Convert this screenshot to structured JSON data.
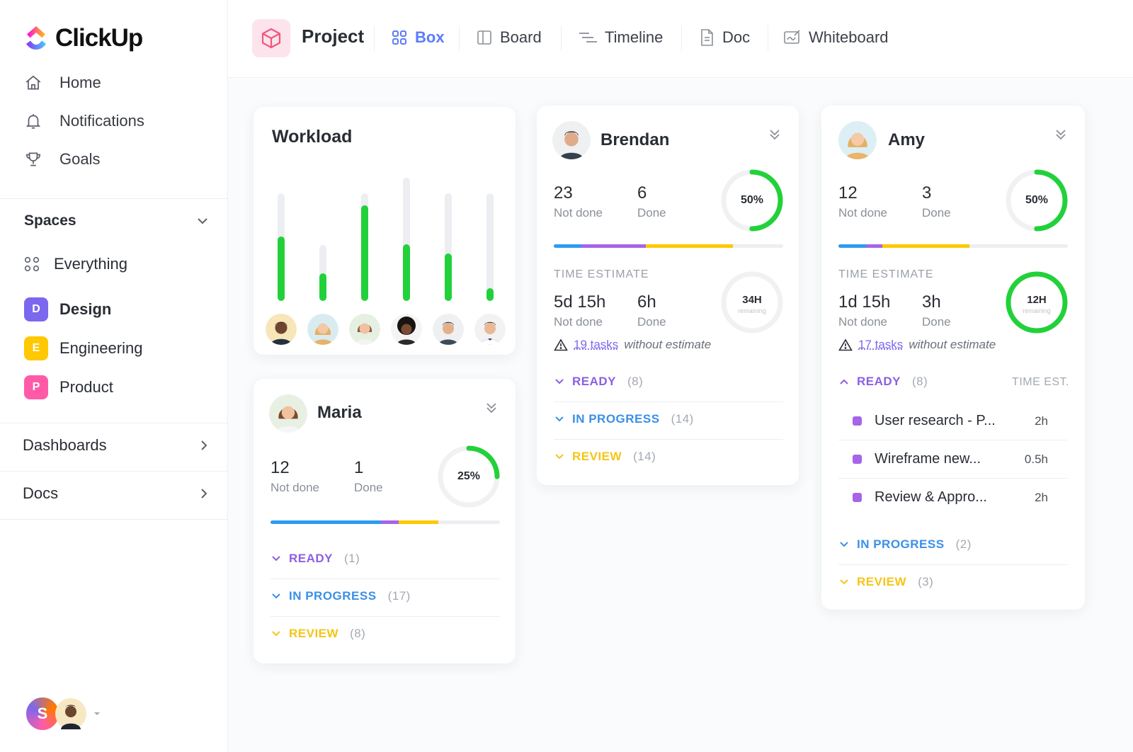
{
  "app": {
    "name": "ClickUp"
  },
  "sidebar": {
    "nav": [
      {
        "label": "Home",
        "icon": "home-icon"
      },
      {
        "label": "Notifications",
        "icon": "bell-icon"
      },
      {
        "label": "Goals",
        "icon": "trophy-icon"
      }
    ],
    "spaces_label": "Spaces",
    "spaces": [
      {
        "label": "Everything",
        "badge": "",
        "color": ""
      },
      {
        "label": "Design",
        "badge": "D",
        "color": "#7b68ee"
      },
      {
        "label": "Engineering",
        "badge": "E",
        "color": "#ffc800"
      },
      {
        "label": "Product",
        "badge": "P",
        "color": "#ff5aa8"
      }
    ],
    "dashboards_label": "Dashboards",
    "docs_label": "Docs",
    "user_initial": "S"
  },
  "topbar": {
    "project_title": "Project",
    "tabs": [
      {
        "label": "Box",
        "icon": "grid-icon",
        "active": true
      },
      {
        "label": "Board",
        "icon": "board-icon",
        "active": false
      },
      {
        "label": "Timeline",
        "icon": "timeline-icon",
        "active": false
      },
      {
        "label": "Doc",
        "icon": "doc-icon",
        "active": false
      },
      {
        "label": "Whiteboard",
        "icon": "whiteboard-icon",
        "active": false
      }
    ]
  },
  "workload": {
    "title": "Workload",
    "bars": [
      {
        "fill_fraction": 0.6
      },
      {
        "fill_fraction": 0.5
      },
      {
        "fill_fraction": 0.89
      },
      {
        "fill_fraction": 0.46
      },
      {
        "fill_fraction": 0.44
      },
      {
        "fill_fraction": 0.12
      }
    ]
  },
  "colors": {
    "green": "#22d13a",
    "blue": "#2e9bf0",
    "purple": "#a665e8",
    "yellow": "#ffc800",
    "ready": "#8c5fe0",
    "in_progress": "#3b8fe8",
    "review": "#f5c518"
  },
  "people": {
    "brendan": {
      "name": "Brendan",
      "not_done": "23",
      "not_done_label": "Not done",
      "done": "6",
      "done_label": "Done",
      "percent": "50%",
      "percent_value": 0.5,
      "progress": [
        {
          "color": "#2e9bf0",
          "fraction": 0.12
        },
        {
          "color": "#a665e8",
          "fraction": 0.28
        },
        {
          "color": "#ffc800",
          "fraction": 0.38
        }
      ],
      "time_estimate_label": "TIME ESTIMATE",
      "est_not_done": "5d 15h",
      "est_not_done_label": "Not done",
      "est_done": "6h",
      "est_done_label": "Done",
      "remaining": "34H",
      "remaining_label": "remaining",
      "remaining_value": 0,
      "tasks_link": "19 tasks",
      "tasks_suffix": "without estimate",
      "groups": [
        {
          "label": "READY",
          "count": "(8)",
          "key": "ready"
        },
        {
          "label": "IN PROGRESS",
          "count": "(14)",
          "key": "in_progress"
        },
        {
          "label": "REVIEW",
          "count": "(14)",
          "key": "review"
        }
      ]
    },
    "amy": {
      "name": "Amy",
      "not_done": "12",
      "not_done_label": "Not done",
      "done": "3",
      "done_label": "Done",
      "percent": "50%",
      "percent_value": 0.5,
      "progress": [
        {
          "color": "#2e9bf0",
          "fraction": 0.12
        },
        {
          "color": "#a665e8",
          "fraction": 0.07
        },
        {
          "color": "#ffc800",
          "fraction": 0.38
        }
      ],
      "time_estimate_label": "TIME ESTIMATE",
      "est_not_done": "1d 15h",
      "est_not_done_label": "Not done",
      "est_done": "3h",
      "est_done_label": "Done",
      "remaining": "12H",
      "remaining_label": "remaining",
      "remaining_value": 1,
      "tasks_link": "17 tasks",
      "tasks_suffix": "without estimate",
      "time_est_col": "TIME EST.",
      "ready_group": {
        "label": "READY",
        "count": "(8)"
      },
      "tasks": [
        {
          "name": "User research - P...",
          "est": "2h"
        },
        {
          "name": "Wireframe new...",
          "est": "0.5h"
        },
        {
          "name": "Review & Appro...",
          "est": "2h"
        }
      ],
      "groups": [
        {
          "label": "IN PROGRESS",
          "count": "(2)",
          "key": "in_progress"
        },
        {
          "label": "REVIEW",
          "count": "(3)",
          "key": "review"
        }
      ]
    },
    "maria": {
      "name": "Maria",
      "not_done": "12",
      "not_done_label": "Not done",
      "done": "1",
      "done_label": "Done",
      "percent": "25%",
      "percent_value": 0.25,
      "progress": [
        {
          "color": "#2e9bf0",
          "fraction": 0.48
        },
        {
          "color": "#a665e8",
          "fraction": 0.08
        },
        {
          "color": "#ffc800",
          "fraction": 0.17
        }
      ],
      "groups": [
        {
          "label": "READY",
          "count": "(1)",
          "key": "ready"
        },
        {
          "label": "IN PROGRESS",
          "count": "(17)",
          "key": "in_progress"
        },
        {
          "label": "REVIEW",
          "count": "(8)",
          "key": "review"
        }
      ]
    }
  }
}
